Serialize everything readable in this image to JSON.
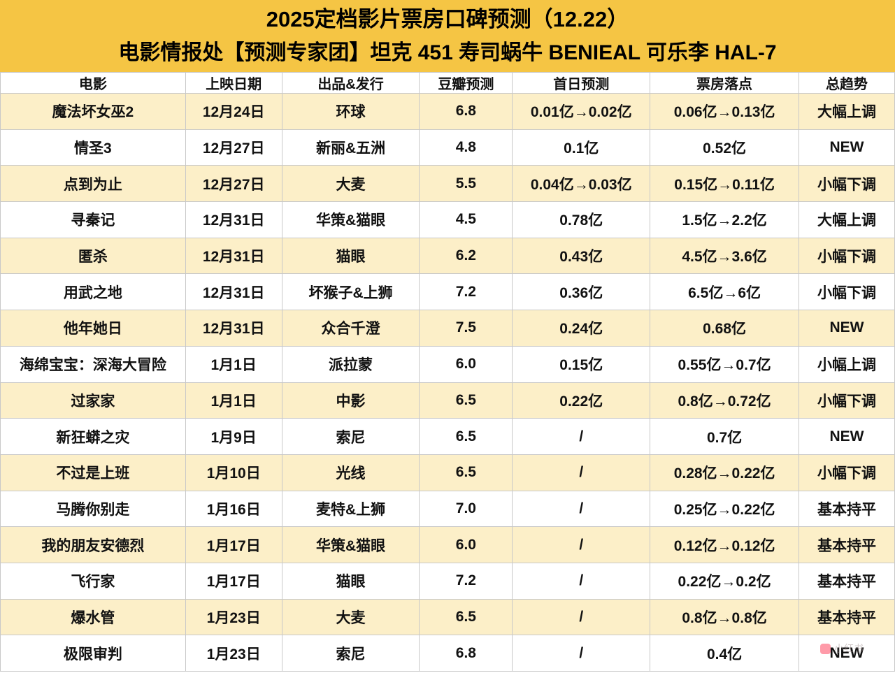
{
  "header": {
    "title_line1": "2025定档影片票房口碑预测（12.22）",
    "title_line2": "电影情报处【预测专家团】坦克 451 寿司蜗牛 BENIEAL 可乐李 HAL-7"
  },
  "chart_data": {
    "type": "table",
    "title": "2025定档影片票房口碑预测（12.22）",
    "columns": [
      "电影",
      "上映日期",
      "出品&发行",
      "豆瓣预测",
      "首日预测",
      "票房落点",
      "总趋势"
    ],
    "rows": [
      [
        "魔法坏女巫2",
        "12月24日",
        "环球",
        "6.8",
        "0.01亿→0.02亿",
        "0.06亿→0.13亿",
        "大幅上调"
      ],
      [
        "情圣3",
        "12月27日",
        "新丽&五洲",
        "4.8",
        "0.1亿",
        "0.52亿",
        "NEW"
      ],
      [
        "点到为止",
        "12月27日",
        "大麦",
        "5.5",
        "0.04亿→0.03亿",
        "0.15亿→0.11亿",
        "小幅下调"
      ],
      [
        "寻秦记",
        "12月31日",
        "华策&猫眼",
        "4.5",
        "0.78亿",
        "1.5亿→2.2亿",
        "大幅上调"
      ],
      [
        "匿杀",
        "12月31日",
        "猫眼",
        "6.2",
        "0.43亿",
        "4.5亿→3.6亿",
        "小幅下调"
      ],
      [
        "用武之地",
        "12月31日",
        "坏猴子&上狮",
        "7.2",
        "0.36亿",
        "6.5亿→6亿",
        "小幅下调"
      ],
      [
        "他年她日",
        "12月31日",
        "众合千澄",
        "7.5",
        "0.24亿",
        "0.68亿",
        "NEW"
      ],
      [
        "海绵宝宝：深海大冒险",
        "1月1日",
        "派拉蒙",
        "6.0",
        "0.15亿",
        "0.55亿→0.7亿",
        "小幅上调"
      ],
      [
        "过家家",
        "1月1日",
        "中影",
        "6.5",
        "0.22亿",
        "0.8亿→0.72亿",
        "小幅下调"
      ],
      [
        "新狂蟒之灾",
        "1月9日",
        "索尼",
        "6.5",
        "/",
        "0.7亿",
        "NEW"
      ],
      [
        "不过是上班",
        "1月10日",
        "光线",
        "6.5",
        "/",
        "0.28亿→0.22亿",
        "小幅下调"
      ],
      [
        "马腾你别走",
        "1月16日",
        "麦特&上狮",
        "7.0",
        "/",
        "0.25亿→0.22亿",
        "基本持平"
      ],
      [
        "我的朋友安德烈",
        "1月17日",
        "华策&猫眼",
        "6.0",
        "/",
        "0.12亿→0.12亿",
        "基本持平"
      ],
      [
        "飞行家",
        "1月17日",
        "猫眼",
        "7.2",
        "/",
        "0.22亿→0.2亿",
        "基本持平"
      ],
      [
        "爆水管",
        "1月23日",
        "大麦",
        "6.5",
        "/",
        "0.8亿→0.8亿",
        "基本持平"
      ],
      [
        "极限审判",
        "1月23日",
        "索尼",
        "6.8",
        "/",
        "0.4亿",
        "NEW"
      ]
    ]
  },
  "colors": {
    "banner_bg": "#F5C544",
    "row_alt_bg": "#FCEFC8",
    "row_bg": "#FFFFFF",
    "border": "#C8C8C8",
    "text": "#111111"
  },
  "watermark": {
    "label": "小红书"
  }
}
